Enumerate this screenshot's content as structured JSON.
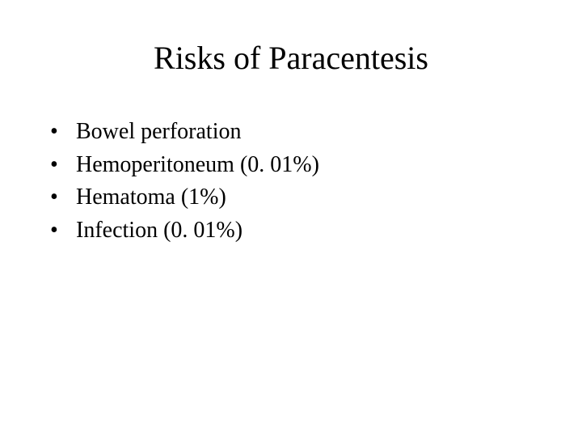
{
  "slide": {
    "title": "Risks of Paracentesis",
    "bullets": [
      {
        "text": "Bowel perforation"
      },
      {
        "text": "Hemoperitoneum (0. 01%)"
      },
      {
        "text": "Hematoma (1%)"
      },
      {
        "text": "Infection (0. 01%)"
      }
    ]
  },
  "style": {
    "background_color": "#ffffff",
    "text_color": "#000000",
    "font_family": "Times New Roman",
    "title_fontsize": 40,
    "body_fontsize": 28,
    "bullet_char": "•"
  }
}
